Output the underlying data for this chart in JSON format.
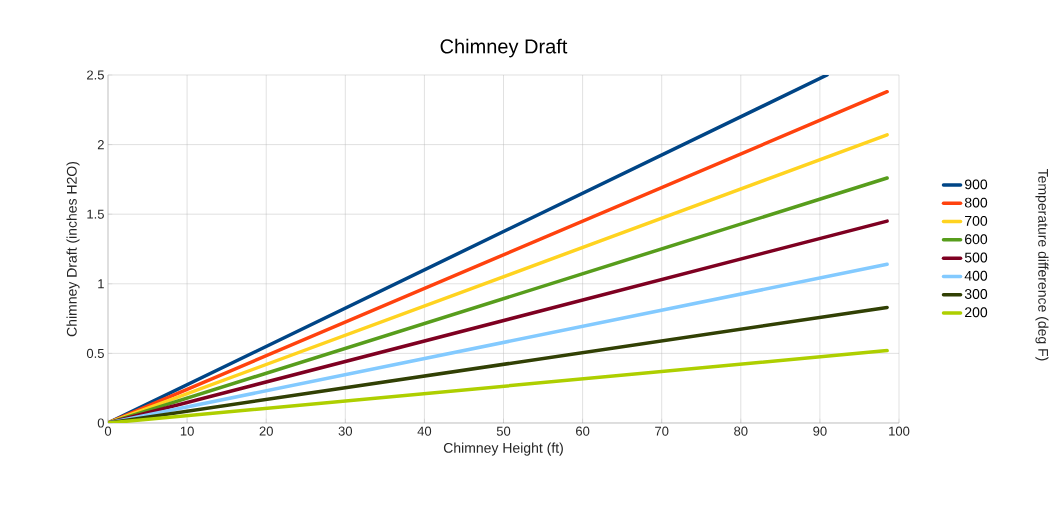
{
  "chart_data": {
    "type": "line",
    "title": "Chimney Draft",
    "xlabel": "Chimney Height (ft)",
    "ylabel": "Chimney Draft (inches H2O)",
    "legend_title": "Temperature difference  (deg F)",
    "xlim": [
      0,
      100
    ],
    "ylim": [
      0,
      2.5
    ],
    "xticks": [
      0,
      10,
      20,
      30,
      40,
      50,
      60,
      70,
      80,
      90,
      100
    ],
    "yticks": [
      0,
      0.5,
      1,
      1.5,
      2,
      2.5
    ],
    "grid": true,
    "legend": "right",
    "marker": "none",
    "line_style": "solid",
    "series": [
      {
        "name": "900",
        "color": "#004586",
        "x": [
          0,
          90.9
        ],
        "values": [
          0,
          2.5
        ]
      },
      {
        "name": "800",
        "color": "#ff420e",
        "x": [
          0,
          98.5
        ],
        "values": [
          0,
          2.38
        ]
      },
      {
        "name": "700",
        "color": "#ffd320",
        "x": [
          0,
          98.5
        ],
        "values": [
          0,
          2.07
        ]
      },
      {
        "name": "600",
        "color": "#579d1c",
        "x": [
          0,
          98.5
        ],
        "values": [
          0,
          1.76
        ]
      },
      {
        "name": "500",
        "color": "#7e0021",
        "x": [
          0,
          98.5
        ],
        "values": [
          0,
          1.45
        ]
      },
      {
        "name": "400",
        "color": "#83caff",
        "x": [
          0,
          98.5
        ],
        "values": [
          0,
          1.14
        ]
      },
      {
        "name": "300",
        "color": "#314004",
        "x": [
          0,
          98.5
        ],
        "values": [
          0,
          0.83
        ]
      },
      {
        "name": "200",
        "color": "#aecf00",
        "x": [
          0,
          98.5
        ],
        "values": [
          0,
          0.52
        ]
      }
    ]
  }
}
